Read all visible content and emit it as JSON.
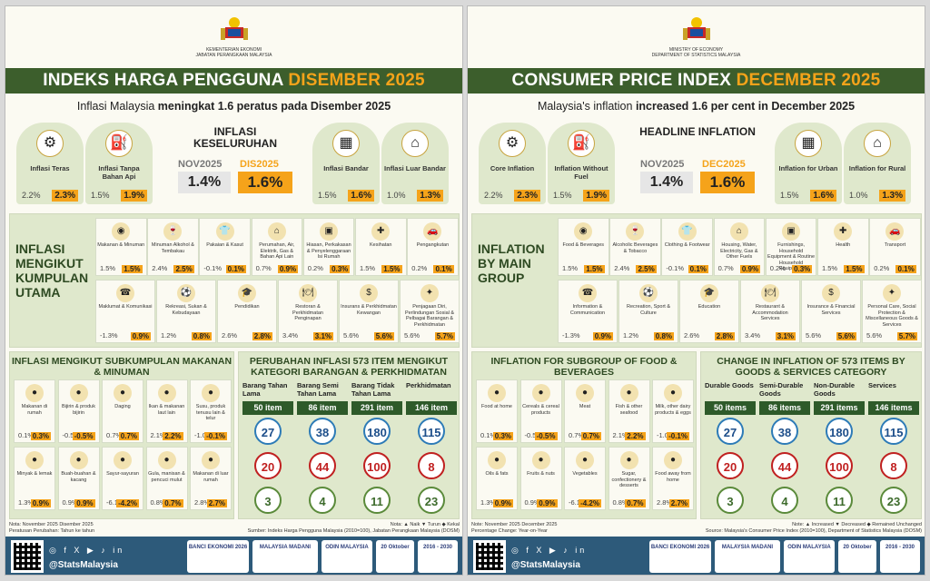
{
  "panels": [
    {
      "ministry": "KEMENTERIAN EKONOMI\nJABATAN PERANGKAAN MALAYSIA",
      "banner_a": "INDEKS HARGA PENGGUNA ",
      "banner_b": "DISEMBER 2025",
      "sub_a": "Inflasi Malaysia ",
      "sub_b": "meningkat 1.6 peratus pada ",
      "sub_c": "Disember 2025",
      "cards": [
        {
          "label": "Inflasi Teras",
          "v1": "2.2%",
          "v2": "2.3%",
          "icon": "gears-icon"
        },
        {
          "label": "Inflasi Tanpa Bahan Api",
          "v1": "1.5%",
          "v2": "1.9%",
          "icon": "fuel-icon"
        },
        {
          "label": "Inflasi Bandar",
          "v1": "1.5%",
          "v2": "1.6%",
          "icon": "building-icon"
        },
        {
          "label": "Inflasi Luar Bandar",
          "v1": "1.0%",
          "v2": "1.3%",
          "icon": "house-icon"
        }
      ],
      "headline": {
        "title": "INFLASI KESELURUHAN",
        "m1": "NOV2025",
        "m2": "DIS2025",
        "v1": "1.4%",
        "v2": "1.6%"
      },
      "group_title": "INFLASI MENGIKUT KUMPULAN UTAMA",
      "groups": [
        {
          "label": "Makanan & Minuman",
          "v1": "1.5%",
          "v2": "1.5%"
        },
        {
          "label": "Minuman Alkohol & Tembakau",
          "v1": "2.4%",
          "v2": "2.5%"
        },
        {
          "label": "Pakaian & Kasut",
          "v1": "-0.1%",
          "v2": "0.1%"
        },
        {
          "label": "Perumahan, Air, Elektrik, Gas & Bahan Api Lain",
          "v1": "0.7%",
          "v2": "0.9%"
        },
        {
          "label": "Hiasan, Perkakasan & Penyelenggaraan Isi Rumah",
          "v1": "0.2%",
          "v2": "0.3%"
        },
        {
          "label": "Kesihatan",
          "v1": "1.5%",
          "v2": "1.5%"
        },
        {
          "label": "Pengangkutan",
          "v1": "0.2%",
          "v2": "0.1%"
        },
        {
          "label": "Maklumat & Komunikasi",
          "v1": "-1.3%",
          "v2": "0.9%"
        },
        {
          "label": "Rekreasi, Sukan & Kebudayaan",
          "v1": "1.2%",
          "v2": "0.8%"
        },
        {
          "label": "Pendidikan",
          "v1": "2.6%",
          "v2": "2.8%"
        },
        {
          "label": "Restoran & Perkhidmatan Penginapan",
          "v1": "3.4%",
          "v2": "3.1%"
        },
        {
          "label": "Insurans & Perkhidmatan Kewangan",
          "v1": "5.6%",
          "v2": "5.6%"
        },
        {
          "label": "Penjagaan Diri, Perlindungan Sosial & Pelbagai Barangan & Perkhidmatan",
          "v1": "5.6%",
          "v2": "5.7%"
        }
      ],
      "food_title": "INFLASI MENGIKUT SUBKUMPULAN MAKANAN & MINUMAN",
      "food": [
        {
          "label": "Makanan di rumah",
          "v1": "0.1%",
          "v2": "0.3%"
        },
        {
          "label": "Bijirin & produk bijirin",
          "v1": "-0.5%",
          "v2": "-0.5%"
        },
        {
          "label": "Daging",
          "v1": "0.7%",
          "v2": "0.7%"
        },
        {
          "label": "Ikan & makanan laut lain",
          "v1": "2.1%",
          "v2": "2.2%"
        },
        {
          "label": "Susu, produk tenusu lain & telur",
          "v1": "-1.0%",
          "v2": "-0.1%"
        },
        {
          "label": "Minyak & lemak",
          "v1": "1.3%",
          "v2": "0.9%"
        },
        {
          "label": "Buah-buahan & kacang",
          "v1": "0.9%",
          "v2": "0.9%"
        },
        {
          "label": "Sayur-sayuran",
          "v1": "-6.1%",
          "v2": "-4.2%"
        },
        {
          "label": "Gula, manisan & pencuci mulut",
          "v1": "0.8%",
          "v2": "0.7%"
        },
        {
          "label": "Makanan di luar rumah",
          "v1": "2.8%",
          "v2": "2.7%"
        }
      ],
      "items_title": "PERUBAHAN INFLASI 573 ITEM MENGIKUT KATEGORI BARANGAN & PERKHIDMATAN",
      "cols": [
        {
          "h": "Barang Tahan Lama",
          "n": "50 item",
          "up": "27",
          "dn": "20",
          "eq": "3"
        },
        {
          "h": "Barang Semi Tahan Lama",
          "n": "86 item",
          "up": "38",
          "dn": "44",
          "eq": "4"
        },
        {
          "h": "Barang Tidak Tahan Lama",
          "n": "291 item",
          "up": "180",
          "dn": "100",
          "eq": "11"
        },
        {
          "h": "Perkhidmatan",
          "n": "146 item",
          "up": "115",
          "dn": "8",
          "eq": "23"
        }
      ],
      "note1": "Nota:  November 2025  Disember 2025",
      "note2": "Peratusan Perubahan: Tahun ke tahun",
      "legend": "Nota: ▲ Naik  ▼ Turun  ◆ Kekal",
      "source": "Sumber: Indeks Harga Pengguna Malaysia (2010=100), Jabatan Perangkaan Malaysia (DOSM)",
      "handle": "@StatsMalaysia"
    },
    {
      "ministry": "MINISTRY OF ECONOMY\nDEPARTMENT OF STATISTICS MALAYSIA",
      "banner_a": "CONSUMER PRICE INDEX ",
      "banner_b": "DECEMBER 2025",
      "sub_a": "Malaysia's inflation ",
      "sub_b": "increased 1.6 per cent ",
      "sub_c": "in December 2025",
      "cards": [
        {
          "label": "Core Inflation",
          "v1": "2.2%",
          "v2": "2.3%",
          "icon": "gears-icon"
        },
        {
          "label": "Inflation Without Fuel",
          "v1": "1.5%",
          "v2": "1.9%",
          "icon": "fuel-icon"
        },
        {
          "label": "Inflation for Urban",
          "v1": "1.5%",
          "v2": "1.6%",
          "icon": "building-icon"
        },
        {
          "label": "Inflation for Rural",
          "v1": "1.0%",
          "v2": "1.3%",
          "icon": "house-icon"
        }
      ],
      "headline": {
        "title": "HEADLINE INFLATION",
        "m1": "NOV2025",
        "m2": "DEC2025",
        "v1": "1.4%",
        "v2": "1.6%"
      },
      "group_title": "INFLATION BY MAIN GROUP",
      "groups": [
        {
          "label": "Food & Beverages",
          "v1": "1.5%",
          "v2": "1.5%"
        },
        {
          "label": "Alcoholic Beverages & Tobacco",
          "v1": "2.4%",
          "v2": "2.5%"
        },
        {
          "label": "Clothing & Footwear",
          "v1": "-0.1%",
          "v2": "0.1%"
        },
        {
          "label": "Housing, Water, Electricity, Gas & Other Fuels",
          "v1": "0.7%",
          "v2": "0.9%"
        },
        {
          "label": "Furnishings, Household Equipment & Routine Household Equipment",
          "v1": "0.2%",
          "v2": "0.3%"
        },
        {
          "label": "Health",
          "v1": "1.5%",
          "v2": "1.5%"
        },
        {
          "label": "Transport",
          "v1": "0.2%",
          "v2": "0.1%"
        },
        {
          "label": "Information & Communication",
          "v1": "-1.3%",
          "v2": "0.9%"
        },
        {
          "label": "Recreation, Sport & Culture",
          "v1": "1.2%",
          "v2": "0.8%"
        },
        {
          "label": "Education",
          "v1": "2.6%",
          "v2": "2.8%"
        },
        {
          "label": "Restaurant & Accommodation Services",
          "v1": "3.4%",
          "v2": "3.1%"
        },
        {
          "label": "Insurance & Financial Services",
          "v1": "5.6%",
          "v2": "5.6%"
        },
        {
          "label": "Personal Care, Social Protection & Miscellaneous Goods & Services",
          "v1": "5.6%",
          "v2": "5.7%"
        }
      ],
      "food_title": "INFLATION FOR SUBGROUP OF FOOD & BEVERAGES",
      "food": [
        {
          "label": "Food at home",
          "v1": "0.1%",
          "v2": "0.3%"
        },
        {
          "label": "Cereals & cereal products",
          "v1": "-0.5%",
          "v2": "-0.5%"
        },
        {
          "label": "Meat",
          "v1": "0.7%",
          "v2": "0.7%"
        },
        {
          "label": "Fish & other seafood",
          "v1": "2.1%",
          "v2": "2.2%"
        },
        {
          "label": "Milk, other dairy products & eggs",
          "v1": "-1.0%",
          "v2": "-0.1%"
        },
        {
          "label": "Oils & fats",
          "v1": "1.3%",
          "v2": "0.9%"
        },
        {
          "label": "Fruits & nuts",
          "v1": "0.9%",
          "v2": "0.9%"
        },
        {
          "label": "Vegetables",
          "v1": "-6.1%",
          "v2": "-4.2%"
        },
        {
          "label": "Sugar, confectionery & desserts",
          "v1": "0.8%",
          "v2": "0.7%"
        },
        {
          "label": "Food away from home",
          "v1": "2.8%",
          "v2": "2.7%"
        }
      ],
      "items_title": "CHANGE IN INFLATION OF 573 ITEMS BY GOODS & SERVICES CATEGORY",
      "cols": [
        {
          "h": "Durable Goods",
          "n": "50 items",
          "up": "27",
          "dn": "20",
          "eq": "3"
        },
        {
          "h": "Semi-Durable Goods",
          "n": "86 items",
          "up": "38",
          "dn": "44",
          "eq": "4"
        },
        {
          "h": "Non-Durable Goods",
          "n": "291 items",
          "up": "180",
          "dn": "100",
          "eq": "11"
        },
        {
          "h": "Services",
          "n": "146 items",
          "up": "115",
          "dn": "8",
          "eq": "23"
        }
      ],
      "note1": "Note:  November 2025  December 2025",
      "note2": "Percentage Change: Year-on-Year",
      "legend": "Note: ▲ Increased  ▼ Decreased  ◆ Remained Unchanged",
      "source": "Source: Malaysia's Consumer Price Index (2010=100), Department of Statistics Malaysia (DOSM)",
      "handle": "@StatsMalaysia"
    }
  ],
  "footer_logos": [
    "BANCI EKONOMI 2026",
    "MALAYSIA MADANI",
    "ODIN MALAYSIA",
    "20 Oktober",
    "2016 - 2030"
  ]
}
